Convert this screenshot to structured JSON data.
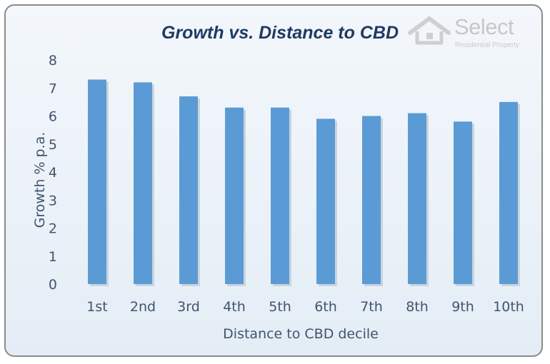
{
  "chart_data": {
    "type": "bar",
    "title": "Growth vs. Distance to CBD",
    "xlabel": "Distance to CBD decile",
    "ylabel": "Growth % p.a.",
    "categories": [
      "1st",
      "2nd",
      "3rd",
      "4th",
      "5th",
      "6th",
      "7th",
      "8th",
      "9th",
      "10th"
    ],
    "values": [
      7.3,
      7.2,
      6.7,
      6.3,
      6.3,
      5.9,
      6.0,
      6.1,
      5.8,
      6.5
    ],
    "ylim": [
      0,
      8
    ],
    "yticks": [
      0,
      1,
      2,
      3,
      4,
      5,
      6,
      7,
      8
    ],
    "grid": false,
    "legend": "none",
    "colors": {
      "bar": "#5b9bd5",
      "title": "#1f3b63",
      "text": "#41546e"
    }
  },
  "logo": {
    "word": "Select",
    "subtitle": "Residential Property",
    "icon": "house-icon"
  }
}
